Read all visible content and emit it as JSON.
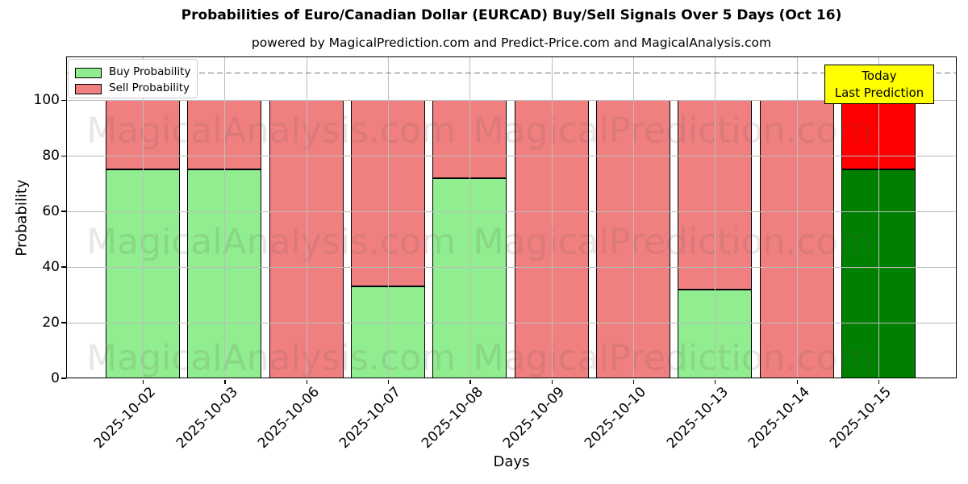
{
  "title": "Probabilities of Euro/Canadian Dollar (EURCAD) Buy/Sell Signals Over 5 Days (Oct 16)",
  "subtitle": "powered by MagicalPrediction.com and Predict-Price.com and MagicalAnalysis.com",
  "axes": {
    "xlabel": "Days",
    "ylabel": "Probability",
    "yticks": [
      0,
      20,
      40,
      60,
      80,
      100
    ]
  },
  "legend": {
    "items": [
      {
        "label": "Buy Probability",
        "color": "#90ee90"
      },
      {
        "label": "Sell Probability",
        "color": "#f08080"
      }
    ]
  },
  "annotation_box": {
    "line1": "Today",
    "line2": "Last Prediction",
    "bg_color": "#ffff00"
  },
  "watermarks": {
    "left_text": "MagicalAnalysis.com",
    "right_text": "MagicalPrediction.com"
  },
  "colors": {
    "buy": "#90ee90",
    "sell": "#f08080",
    "today_buy": "#008000",
    "today_sell": "#ff0000",
    "bar_edge": "#000000",
    "grid": "#bdbdbd",
    "dashed_line": "#7a7a7a",
    "annotation_bg": "#ffff00"
  },
  "chart_data": {
    "type": "bar",
    "stacked": true,
    "title": "Probabilities of Euro/Canadian Dollar (EURCAD) Buy/Sell Signals Over 5 Days (Oct 16)",
    "xlabel": "Days",
    "ylabel": "Probability",
    "categories": [
      "2025-10-02",
      "2025-10-03",
      "2025-10-06",
      "2025-10-07",
      "2025-10-08",
      "2025-10-09",
      "2025-10-10",
      "2025-10-13",
      "2025-10-14",
      "2025-10-15"
    ],
    "series": [
      {
        "name": "Buy Probability",
        "values": [
          75,
          75,
          0,
          33,
          72,
          0,
          0,
          32,
          0,
          75
        ]
      },
      {
        "name": "Sell Probability",
        "values": [
          25,
          25,
          100,
          67,
          28,
          100,
          100,
          68,
          100,
          25
        ]
      }
    ],
    "today_index": 9,
    "ylim": [
      0,
      116
    ],
    "grid": true,
    "legend_position": "upper left",
    "reference_line": {
      "y": 110,
      "style": "dashed"
    },
    "annotation": {
      "text": "Today / Last Prediction",
      "x": "2025-10-15"
    }
  }
}
